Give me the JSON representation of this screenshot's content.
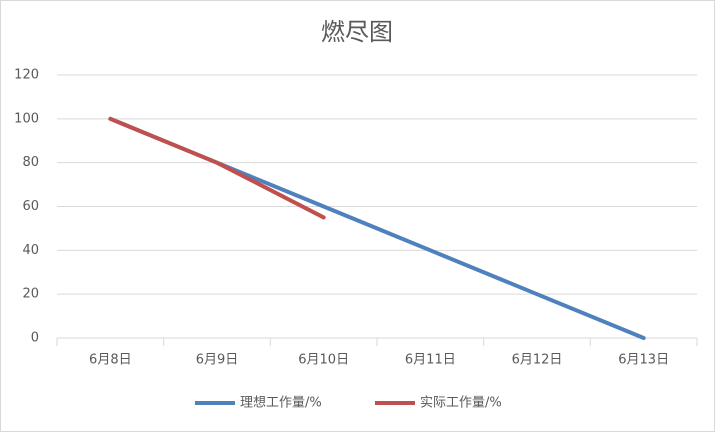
{
  "chart_data": {
    "type": "line",
    "title": "燃尽图",
    "categories": [
      "6月8日",
      "6月9日",
      "6月10日",
      "6月11日",
      "6月12日",
      "6月13日"
    ],
    "series": [
      {
        "name": "理想工作量/%",
        "color": "#4f81bd",
        "values": [
          100,
          80,
          60,
          40,
          20,
          0
        ]
      },
      {
        "name": "实际工作量/%",
        "color": "#c0504d",
        "values": [
          100,
          80,
          55,
          null,
          null,
          null
        ]
      }
    ],
    "ylim": [
      0,
      120
    ],
    "yticks": [
      0,
      20,
      40,
      60,
      80,
      100,
      120
    ],
    "grid": true,
    "legend": "bottom"
  }
}
